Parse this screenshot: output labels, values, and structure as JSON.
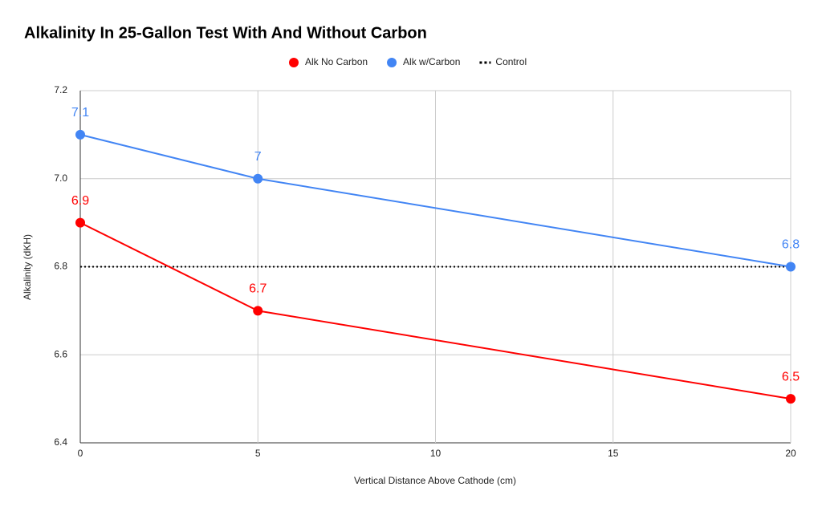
{
  "chart_data": {
    "type": "line",
    "title": "Alkalinity In 25-Gallon Test With And Without Carbon",
    "x_label": "Vertical Distance Above Cathode (cm)",
    "y_label": "Alkalinity (dKH)",
    "x": [
      0,
      5,
      20
    ],
    "series": [
      {
        "name": "Alk No Carbon",
        "color": "#ff0000",
        "values": [
          6.9,
          6.7,
          6.5
        ],
        "markers": true,
        "data_labels": true,
        "dash": "solid"
      },
      {
        "name": "Alk w/Carbon",
        "color": "#4285f4",
        "values": [
          7.1,
          7,
          6.8
        ],
        "markers": true,
        "data_labels": true,
        "dash": "solid"
      },
      {
        "name": "Control",
        "color": "#000000",
        "values": [
          6.8,
          6.8,
          6.8
        ],
        "markers": false,
        "data_labels": false,
        "dash": "dotted"
      }
    ],
    "xlim": [
      0,
      20
    ],
    "xticks": [
      0,
      5,
      10,
      15,
      20
    ],
    "ylim": [
      6.4,
      7.2
    ],
    "yticks": [
      6.4,
      6.6,
      6.8,
      {
        "value": 7,
        "label": "7.0"
      },
      7.2
    ],
    "grid": true,
    "legend": "top"
  }
}
